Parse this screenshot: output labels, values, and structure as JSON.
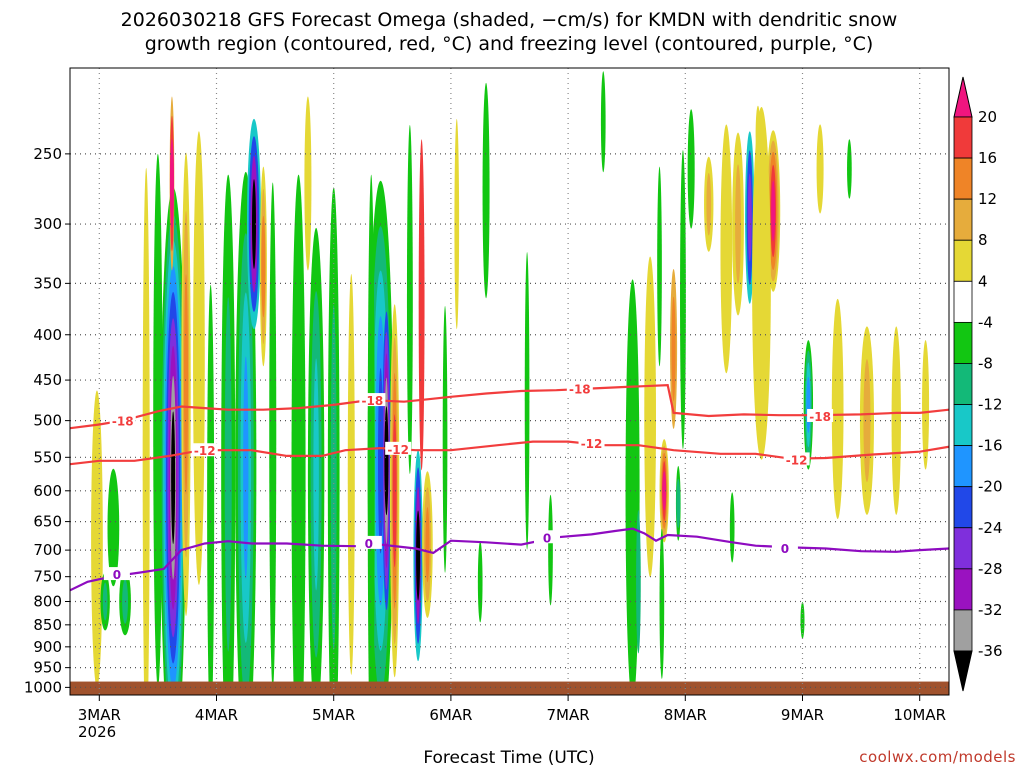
{
  "title_line1": "2026030218 GFS Forecast Omega (shaded, −cm/s) for KMDN with dendritic snow",
  "title_line2": "growth region (contoured, red, °C) and freezing level (contoured, purple, °C)",
  "credit": "coolwx.com/models",
  "chart_data": {
    "type": "heatmap",
    "xlabel": "Forecast Time (UTC)",
    "ylabel": "",
    "x_ticks": [
      "3MAR",
      "4MAR",
      "5MAR",
      "6MAR",
      "7MAR",
      "8MAR",
      "9MAR",
      "10MAR"
    ],
    "x_year_label": "2026",
    "x_range_days": [
      2.75,
      10.25
    ],
    "y_ticks": [
      250,
      300,
      350,
      400,
      450,
      500,
      550,
      600,
      650,
      700,
      750,
      800,
      850,
      900,
      950,
      1000
    ],
    "y_range_hpa": [
      200,
      1020
    ],
    "y_axis": "pressure (hPa), decreasing upward",
    "grid": true,
    "colorbar": {
      "levels": [
        20,
        16,
        12,
        8,
        4,
        -4,
        -8,
        -12,
        -16,
        -20,
        -24,
        -28,
        -32,
        -36
      ],
      "colors": [
        "#f0157f",
        "#f03a3a",
        "#ef8427",
        "#e6ac3c",
        "#e5d835",
        "#ffffff",
        "#12c612",
        "#13b978",
        "#18c8c8",
        "#1f95ff",
        "#2148e8",
        "#7f2fdc",
        "#9a12c0",
        "#a0a0a0",
        "#000000"
      ]
    },
    "contours": [
      {
        "name": "-18",
        "color": "#f23d3d",
        "points": [
          [
            2.75,
            510
          ],
          [
            3.0,
            505
          ],
          [
            3.2,
            500
          ],
          [
            3.5,
            488
          ],
          [
            3.7,
            482
          ],
          [
            3.9,
            484
          ],
          [
            4.1,
            486
          ],
          [
            4.4,
            486
          ],
          [
            4.7,
            484
          ],
          [
            5.0,
            480
          ],
          [
            5.3,
            474
          ],
          [
            5.6,
            476
          ],
          [
            5.8,
            473
          ],
          [
            6.0,
            470
          ],
          [
            6.3,
            466
          ],
          [
            6.6,
            463
          ],
          [
            6.9,
            462
          ],
          [
            7.2,
            460
          ],
          [
            7.5,
            458
          ],
          [
            7.85,
            456
          ],
          [
            7.9,
            490
          ],
          [
            8.2,
            494
          ],
          [
            8.5,
            492
          ],
          [
            8.8,
            493
          ],
          [
            9.1,
            493
          ],
          [
            9.5,
            492
          ],
          [
            9.8,
            490
          ],
          [
            10.0,
            490
          ],
          [
            10.25,
            486
          ]
        ],
        "labels": [
          [
            3.2,
            500
          ],
          [
            5.33,
            474
          ],
          [
            7.1,
            460
          ],
          [
            9.15,
            494
          ]
        ]
      },
      {
        "name": "-12",
        "color": "#f23d3d",
        "points": [
          [
            2.75,
            560
          ],
          [
            3.0,
            555
          ],
          [
            3.3,
            555
          ],
          [
            3.6,
            548
          ],
          [
            3.8,
            542
          ],
          [
            4.0,
            540
          ],
          [
            4.3,
            540
          ],
          [
            4.6,
            548
          ],
          [
            4.9,
            548
          ],
          [
            5.1,
            540
          ],
          [
            5.4,
            537
          ],
          [
            5.7,
            540
          ],
          [
            6.0,
            540
          ],
          [
            6.4,
            533
          ],
          [
            6.7,
            528
          ],
          [
            7.0,
            528
          ],
          [
            7.3,
            533
          ],
          [
            7.6,
            533
          ],
          [
            7.9,
            540
          ],
          [
            8.3,
            545
          ],
          [
            8.6,
            545
          ],
          [
            8.9,
            552
          ],
          [
            9.2,
            551
          ],
          [
            9.6,
            546
          ],
          [
            10.0,
            542
          ],
          [
            10.25,
            535
          ]
        ],
        "labels": [
          [
            3.9,
            540
          ],
          [
            5.55,
            538
          ],
          [
            7.2,
            530
          ],
          [
            8.95,
            553
          ]
        ]
      },
      {
        "name": "0",
        "color": "#8e0bc0",
        "points": [
          [
            2.75,
            777
          ],
          [
            2.9,
            760
          ],
          [
            3.1,
            750
          ],
          [
            3.35,
            742
          ],
          [
            3.55,
            735
          ],
          [
            3.7,
            700
          ],
          [
            3.9,
            688
          ],
          [
            4.1,
            684
          ],
          [
            4.3,
            688
          ],
          [
            4.6,
            688
          ],
          [
            4.9,
            692
          ],
          [
            5.2,
            693
          ],
          [
            5.4,
            690
          ],
          [
            5.7,
            697
          ],
          [
            5.85,
            705
          ],
          [
            6.0,
            683
          ],
          [
            6.3,
            686
          ],
          [
            6.6,
            690
          ],
          [
            6.9,
            677
          ],
          [
            7.2,
            672
          ],
          [
            7.4,
            666
          ],
          [
            7.55,
            662
          ],
          [
            7.65,
            670
          ],
          [
            7.75,
            683
          ],
          [
            7.85,
            673
          ],
          [
            8.1,
            676
          ],
          [
            8.4,
            686
          ],
          [
            8.6,
            692
          ],
          [
            8.9,
            695
          ],
          [
            9.2,
            697
          ],
          [
            9.5,
            702
          ],
          [
            9.8,
            703
          ],
          [
            10.0,
            700
          ],
          [
            10.25,
            697
          ]
        ],
        "labels": [
          [
            3.15,
            745
          ],
          [
            5.3,
            687
          ],
          [
            6.82,
            677
          ],
          [
            8.85,
            696
          ]
        ]
      }
    ]
  }
}
